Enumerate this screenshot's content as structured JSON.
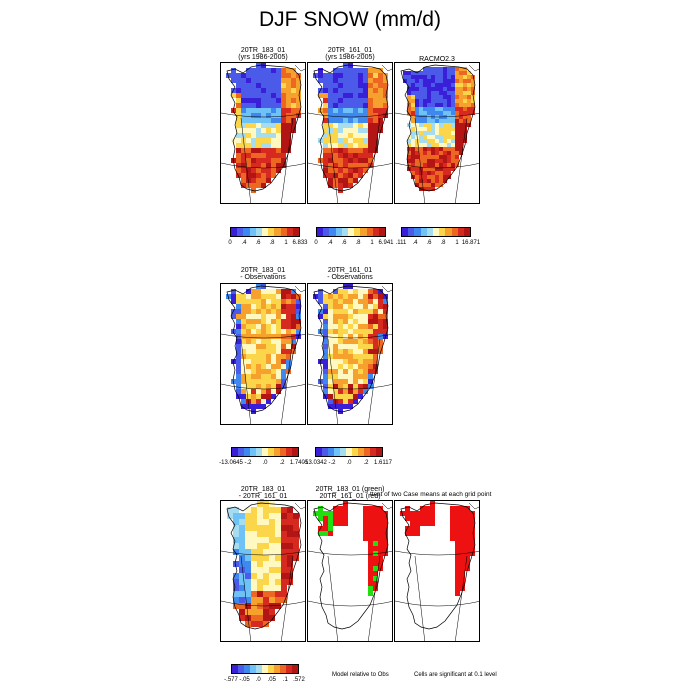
{
  "title": "DJF SNOW (mm/d)",
  "row1": {
    "panels": [
      {
        "label_line1": "20TR_183_01",
        "label_line2": "(yrs 1986-2005)"
      },
      {
        "label_line1": "20TR_161_01",
        "label_line2": "(yrs 1986-2005)"
      },
      {
        "label_line1": "RACMO2.3",
        "label_line2": ""
      }
    ],
    "colorbars": [
      {
        "ticks": [
          "0",
          ".4",
          ".6",
          ".8",
          "1",
          "6.833"
        ]
      },
      {
        "ticks": [
          "0",
          ".4",
          ".6",
          ".8",
          "1",
          "6.941"
        ]
      },
      {
        "ticks": [
          ".111",
          ".4",
          ".6",
          ".8",
          "1",
          "16.871"
        ]
      }
    ]
  },
  "row2": {
    "panels": [
      {
        "label_line1": "20TR_183_01",
        "label_line2": "- Observations"
      },
      {
        "label_line1": "20TR_161_01",
        "label_line2": "- Observations"
      }
    ],
    "colorbars": [
      {
        "ticks": [
          "-13.0645",
          "-.2",
          ".0",
          ".2",
          "1.7405"
        ]
      },
      {
        "ticks": [
          "-13.0342",
          "-.2",
          ".0",
          ".2",
          "1.6117"
        ]
      }
    ]
  },
  "row3": {
    "panels": [
      {
        "label_line1": "20TR_183_01",
        "label_line2": "- 20TR_161_01"
      },
      {
        "label_line1": "20TR_183_01 (green)",
        "label_line2": "20TR_161_01 (red)"
      }
    ],
    "overlay_text": "ttest of two Case means at each grid point",
    "colorbar": {
      "ticks": [
        "-.577",
        "-.05",
        ".0",
        ".05",
        ".1",
        ".572"
      ]
    },
    "note_model": "Model relative to Obs",
    "note_cells": "Cells are significant at 0.1 level"
  },
  "chart_data": {
    "type": "heatmap",
    "title": "DJF SNOW (mm/d)",
    "region": "Greenland",
    "panels": [
      {
        "row": 1,
        "name": "20TR_183_01 (yrs 1986-2005)",
        "range": [
          0,
          6.833
        ]
      },
      {
        "row": 1,
        "name": "20TR_161_01 (yrs 1986-2005)",
        "range": [
          0,
          6.941
        ]
      },
      {
        "row": 1,
        "name": "RACMO2.3",
        "range": [
          0.111,
          16.871
        ]
      },
      {
        "row": 2,
        "name": "20TR_183_01 - Observations",
        "range": [
          -13.0645,
          1.7405
        ]
      },
      {
        "row": 2,
        "name": "20TR_161_01 - Observations",
        "range": [
          -13.0342,
          1.6117
        ]
      },
      {
        "row": 3,
        "name": "20TR_183_01 - 20TR_161_01",
        "range": [
          -0.577,
          0.572
        ]
      },
      {
        "row": 3,
        "name": "20TR_183_01 (green) 20TR_161_01 (red)",
        "type": "significance"
      },
      {
        "row": 3,
        "name": "ttest of two Case means at each grid point",
        "type": "significance"
      }
    ],
    "colors": {
      "palette": [
        "#3a1fd8",
        "#4b5ae8",
        "#3f88f0",
        "#6fc2f5",
        "#a6dcf0",
        "#fff8c0",
        "#fbd64a",
        "#f6a02e",
        "#ee6722",
        "#d6291f",
        "#b31414"
      ],
      "sig_green": "#22dd11",
      "sig_red": "#ee1111"
    }
  }
}
